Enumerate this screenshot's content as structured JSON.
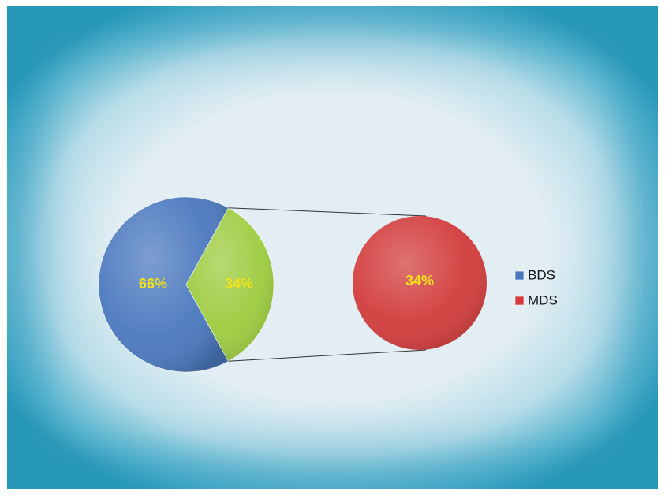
{
  "chart_data": {
    "type": "pie",
    "subtype": "pie-of-pie",
    "title": "",
    "main_pie": {
      "slices": [
        {
          "category": "BDS",
          "value": 66,
          "label": "66%",
          "color": "#4a78be"
        },
        {
          "category": "MDS",
          "value": 34,
          "label": "34%",
          "color": "#9ccb3d"
        }
      ]
    },
    "secondary_pie": {
      "slices": [
        {
          "category": "MDS",
          "value": 34,
          "label": "34%",
          "color": "#d23b3b"
        }
      ]
    },
    "legend": {
      "position": "right",
      "items": [
        {
          "label": "BDS",
          "color": "#4a78be"
        },
        {
          "label": "MDS",
          "color": "#d23b3b"
        }
      ]
    },
    "label_color": "#f2e21c"
  }
}
